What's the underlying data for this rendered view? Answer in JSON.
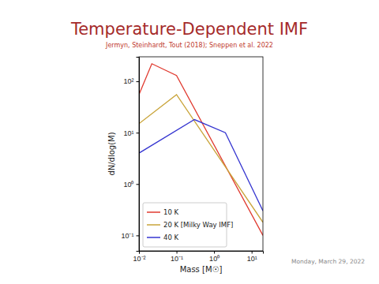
{
  "chart_data": {
    "type": "line",
    "title": "Temperature-Dependent IMF",
    "subtitle": "Jermyn, Steinhardt, Tout (2018); Sneppen et al. 2022",
    "x_label": "Mass [M☉]",
    "y_label": "dN/dlog(M)",
    "annotations": [
      "Monday, March 29, 2022"
    ],
    "log": true,
    "grid": false,
    "legend": "lower left",
    "xlim": [
      0.01,
      20
    ],
    "ylim": [
      0.05,
      300
    ],
    "xticks": [
      {
        "value": 0.01,
        "label": "10⁻²"
      },
      {
        "value": 0.1,
        "label": "10⁻¹"
      },
      {
        "value": 1,
        "label": "10⁰"
      },
      {
        "value": 10,
        "label": "10¹"
      }
    ],
    "yticks": [
      {
        "value": 0.1,
        "label": "10⁻¹"
      },
      {
        "value": 1,
        "label": "10⁰"
      },
      {
        "value": 10,
        "label": "10¹"
      },
      {
        "value": 100,
        "label": "10²"
      }
    ],
    "series": [
      {
        "name": "10 K",
        "color": "#e03a2f",
        "x": [
          0.01,
          0.022,
          0.1,
          20
        ],
        "values": [
          55,
          220,
          130,
          0.1
        ]
      },
      {
        "name": "20 K [Milky Way IMF]",
        "color": "#c9a43a",
        "x": [
          0.01,
          0.1,
          20
        ],
        "values": [
          15,
          55,
          0.18
        ]
      },
      {
        "name": "40 K",
        "color": "#3535d0",
        "x": [
          0.01,
          0.3,
          2,
          20
        ],
        "values": [
          4,
          18,
          10,
          0.3
        ]
      }
    ]
  }
}
